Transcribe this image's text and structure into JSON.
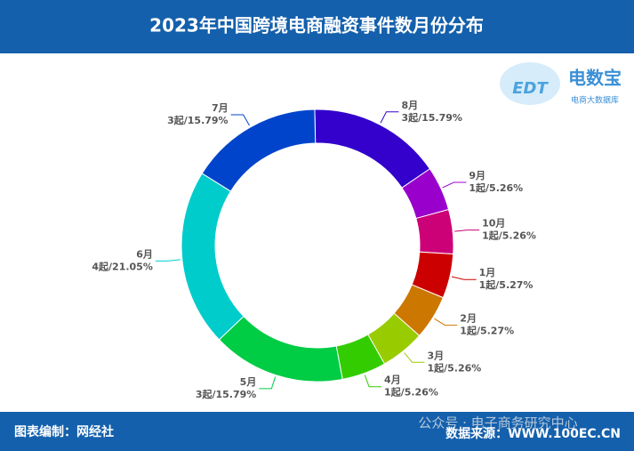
{
  "header": {
    "title": "2023年中国跨境电商融资事件数月份分布"
  },
  "logo": {
    "mark": "EDT",
    "name": "电数宝",
    "subtitle": "电商大数据库"
  },
  "chart_data": {
    "type": "donut",
    "categories": [
      "8月",
      "9月",
      "10月",
      "1月",
      "2月",
      "3月",
      "4月",
      "5月",
      "6月",
      "7月"
    ],
    "values": [
      3,
      1,
      1,
      1,
      1,
      1,
      1,
      3,
      4,
      3
    ],
    "value_labels": [
      "3起/15.79%",
      "1起/5.26%",
      "1起/5.26%",
      "1起/5.27%",
      "1起/5.27%",
      "1起/5.26%",
      "1起/5.26%",
      "3起/15.79%",
      "4起/21.05%",
      "3起/15.79%"
    ],
    "colors": [
      "#3300cc",
      "#9900cc",
      "#cc0077",
      "#cc0000",
      "#cc7700",
      "#99cc00",
      "#33cc00",
      "#00cc44",
      "#00cccc",
      "#0044cc"
    ]
  },
  "footer": {
    "left": "图表编制：网经社",
    "watermark": "公众号 · 电子商务研究中心",
    "right": "数据来源：WWW.100EC.CN"
  }
}
